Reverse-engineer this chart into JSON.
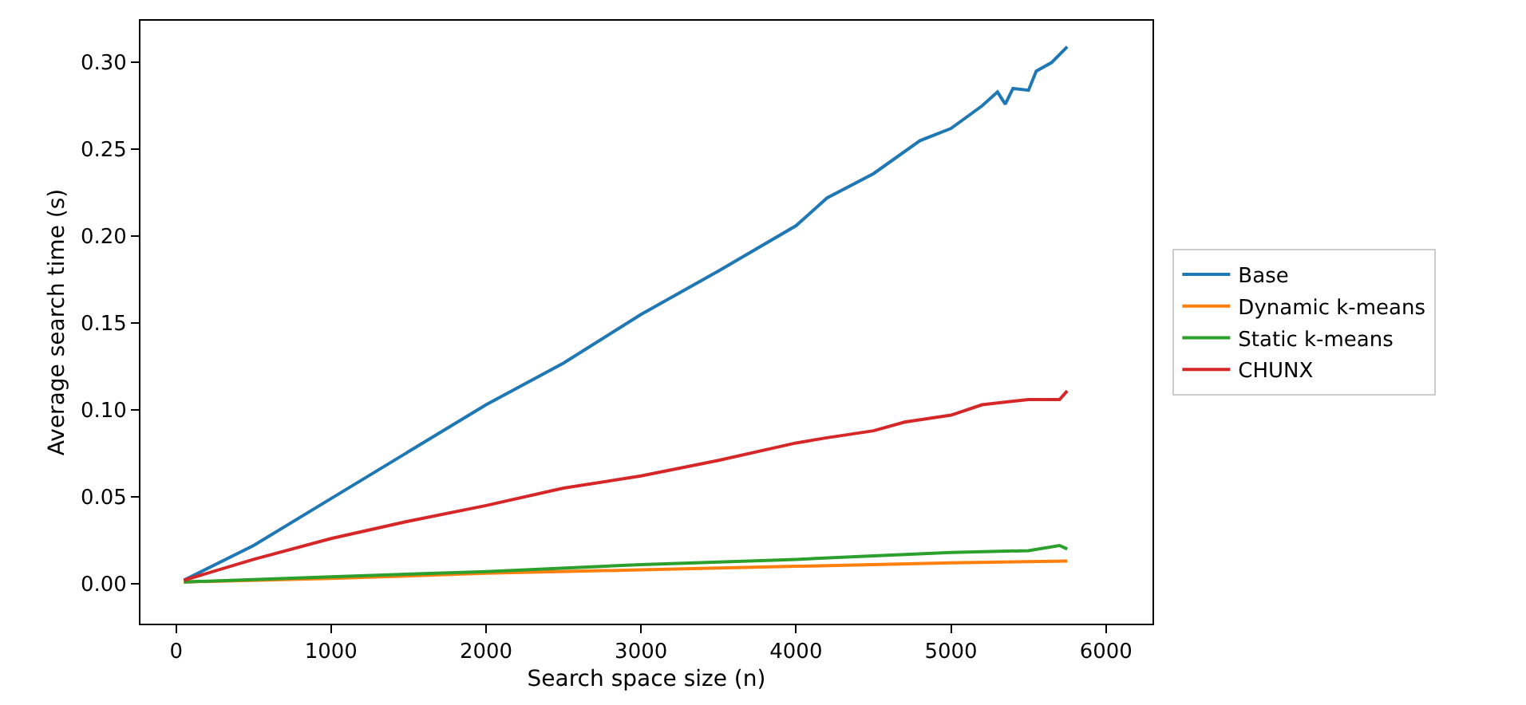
{
  "chart_data": {
    "type": "line",
    "xlabel": "Search space size (n)",
    "ylabel": "Average search time (s)",
    "xlim": [
      -230,
      6300
    ],
    "xticks": [
      0,
      1000,
      2000,
      3000,
      4000,
      5000,
      6000
    ],
    "ylim": [
      -0.023,
      0.324
    ],
    "yticks": [
      {
        "value": 0,
        "label": "0.00"
      },
      {
        "value": 0.05,
        "label": "0.05"
      },
      {
        "value": 0.1,
        "label": "0.10"
      },
      {
        "value": 0.15,
        "label": "0.15"
      },
      {
        "value": 0.2,
        "label": "0.20"
      },
      {
        "value": 0.25,
        "label": "0.25"
      },
      {
        "value": 0.3,
        "label": "0.30"
      }
    ],
    "legend": "right",
    "line_style": "solid",
    "marker": "none",
    "series": [
      {
        "name": "Base",
        "color": "#1f77b4",
        "x": [
          50,
          500,
          1000,
          1500,
          2000,
          2500,
          3000,
          3500,
          4000,
          4200,
          4500,
          4800,
          5000,
          5200,
          5300,
          5350,
          5400,
          5500,
          5550,
          5650,
          5750
        ],
        "values": [
          0.002,
          0.022,
          0.049,
          0.076,
          0.103,
          0.127,
          0.155,
          0.18,
          0.206,
          0.222,
          0.236,
          0.255,
          0.262,
          0.275,
          0.283,
          0.276,
          0.285,
          0.284,
          0.295,
          0.3,
          0.309
        ]
      },
      {
        "name": "Dynamic k-means",
        "color": "#ff7f0e",
        "x": [
          50,
          1000,
          2000,
          3000,
          4000,
          5000,
          5750
        ],
        "values": [
          0.001,
          0.003,
          0.006,
          0.008,
          0.01,
          0.012,
          0.013
        ]
      },
      {
        "name": "Static k-means",
        "color": "#2ca02c",
        "x": [
          50,
          1000,
          2000,
          3000,
          4000,
          4500,
          5000,
          5500,
          5700,
          5750
        ],
        "values": [
          0.001,
          0.004,
          0.007,
          0.011,
          0.014,
          0.016,
          0.018,
          0.019,
          0.022,
          0.02
        ]
      },
      {
        "name": "CHUNX",
        "color": "#d62728",
        "x": [
          50,
          500,
          1000,
          1500,
          2000,
          2500,
          3000,
          3500,
          4000,
          4200,
          4500,
          4700,
          5000,
          5200,
          5500,
          5700,
          5750
        ],
        "values": [
          0.002,
          0.014,
          0.026,
          0.036,
          0.045,
          0.055,
          0.062,
          0.071,
          0.081,
          0.084,
          0.088,
          0.093,
          0.097,
          0.103,
          0.106,
          0.106,
          0.111
        ]
      }
    ]
  }
}
